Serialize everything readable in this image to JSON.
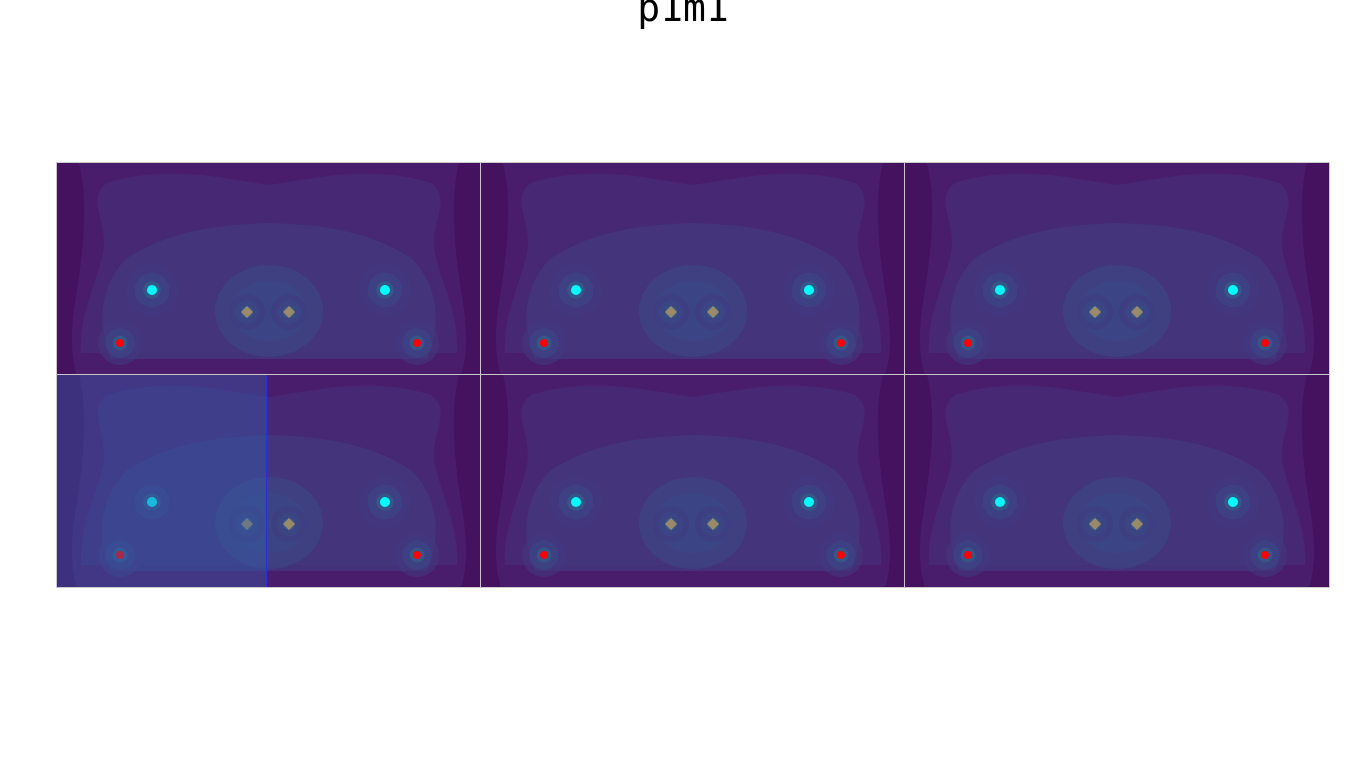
{
  "title": "p1m1",
  "colors": {
    "background": "#ffffff",
    "panel_border": "#c9c9c9",
    "field_outer": "#44125f",
    "field_level_1": "#4a1d6c",
    "field_level_2": "#472a75",
    "field_level_3": "#41387f",
    "field_level_4": "#3b4a87",
    "field_level_5": "#2f6a8c",
    "field_level_6": "#22918a",
    "cyan_point": "#00ffff",
    "red_point": "#ff0000",
    "center_marker": "#9a8a6a",
    "selection_fill": "#345eaa",
    "selection_edge": "#2432d8"
  },
  "panels": [
    {
      "id": "r1c1",
      "selected": false
    },
    {
      "id": "r1c2",
      "selected": false
    },
    {
      "id": "r1c3",
      "selected": false
    },
    {
      "id": "r2c1",
      "selected": true
    },
    {
      "id": "r2c2",
      "selected": false
    },
    {
      "id": "r2c3",
      "selected": false
    }
  ]
}
